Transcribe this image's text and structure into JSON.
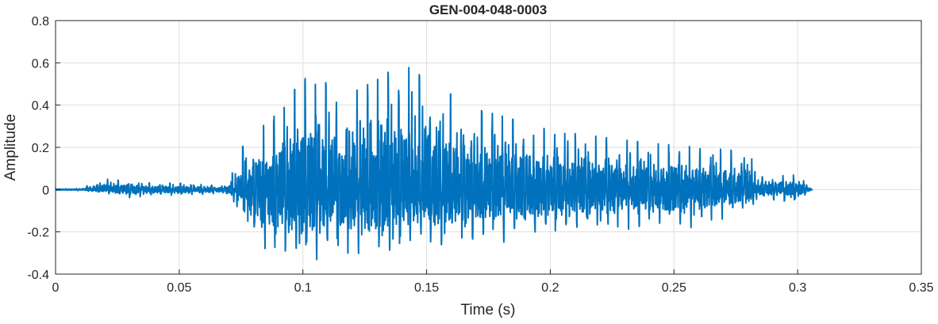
{
  "chart_data": {
    "type": "line",
    "title": "GEN-004-048-0003",
    "xlabel": "Time (s)",
    "ylabel": "Amplitude",
    "xlim": [
      0,
      0.35
    ],
    "ylim": [
      -0.4,
      0.8
    ],
    "xticks": [
      "0",
      "0.05",
      "0.1",
      "0.15",
      "0.2",
      "0.25",
      "0.3",
      "0.35"
    ],
    "yticks": [
      "-0.4",
      "-0.2",
      "0",
      "0.2",
      "0.4",
      "0.6",
      "0.8"
    ],
    "grid": true,
    "line_color": "#0072BD",
    "series": [
      {
        "envelope_time": [
          0,
          0.01,
          0.02,
          0.03,
          0.04,
          0.05,
          0.065,
          0.07,
          0.075,
          0.08,
          0.085,
          0.09,
          0.095,
          0.1,
          0.11,
          0.12,
          0.13,
          0.14,
          0.15,
          0.16,
          0.17,
          0.18,
          0.2,
          0.22,
          0.24,
          0.26,
          0.28,
          0.285,
          0.3,
          0.306
        ],
        "envelope_max": [
          0.005,
          0.005,
          0.05,
          0.04,
          0.03,
          0.03,
          0.02,
          0.03,
          0.2,
          0.23,
          0.32,
          0.36,
          0.42,
          0.58,
          0.5,
          0.46,
          0.52,
          0.6,
          0.52,
          0.45,
          0.38,
          0.35,
          0.28,
          0.25,
          0.22,
          0.2,
          0.18,
          0.06,
          0.07,
          0.0
        ],
        "envelope_min": [
          -0.005,
          -0.005,
          -0.02,
          -0.04,
          -0.03,
          -0.03,
          -0.02,
          -0.03,
          -0.15,
          -0.27,
          -0.33,
          -0.35,
          -0.35,
          -0.37,
          -0.3,
          -0.33,
          -0.33,
          -0.33,
          -0.28,
          -0.28,
          -0.25,
          -0.25,
          -0.22,
          -0.2,
          -0.18,
          -0.18,
          -0.1,
          -0.05,
          -0.06,
          0.0
        ]
      }
    ]
  }
}
